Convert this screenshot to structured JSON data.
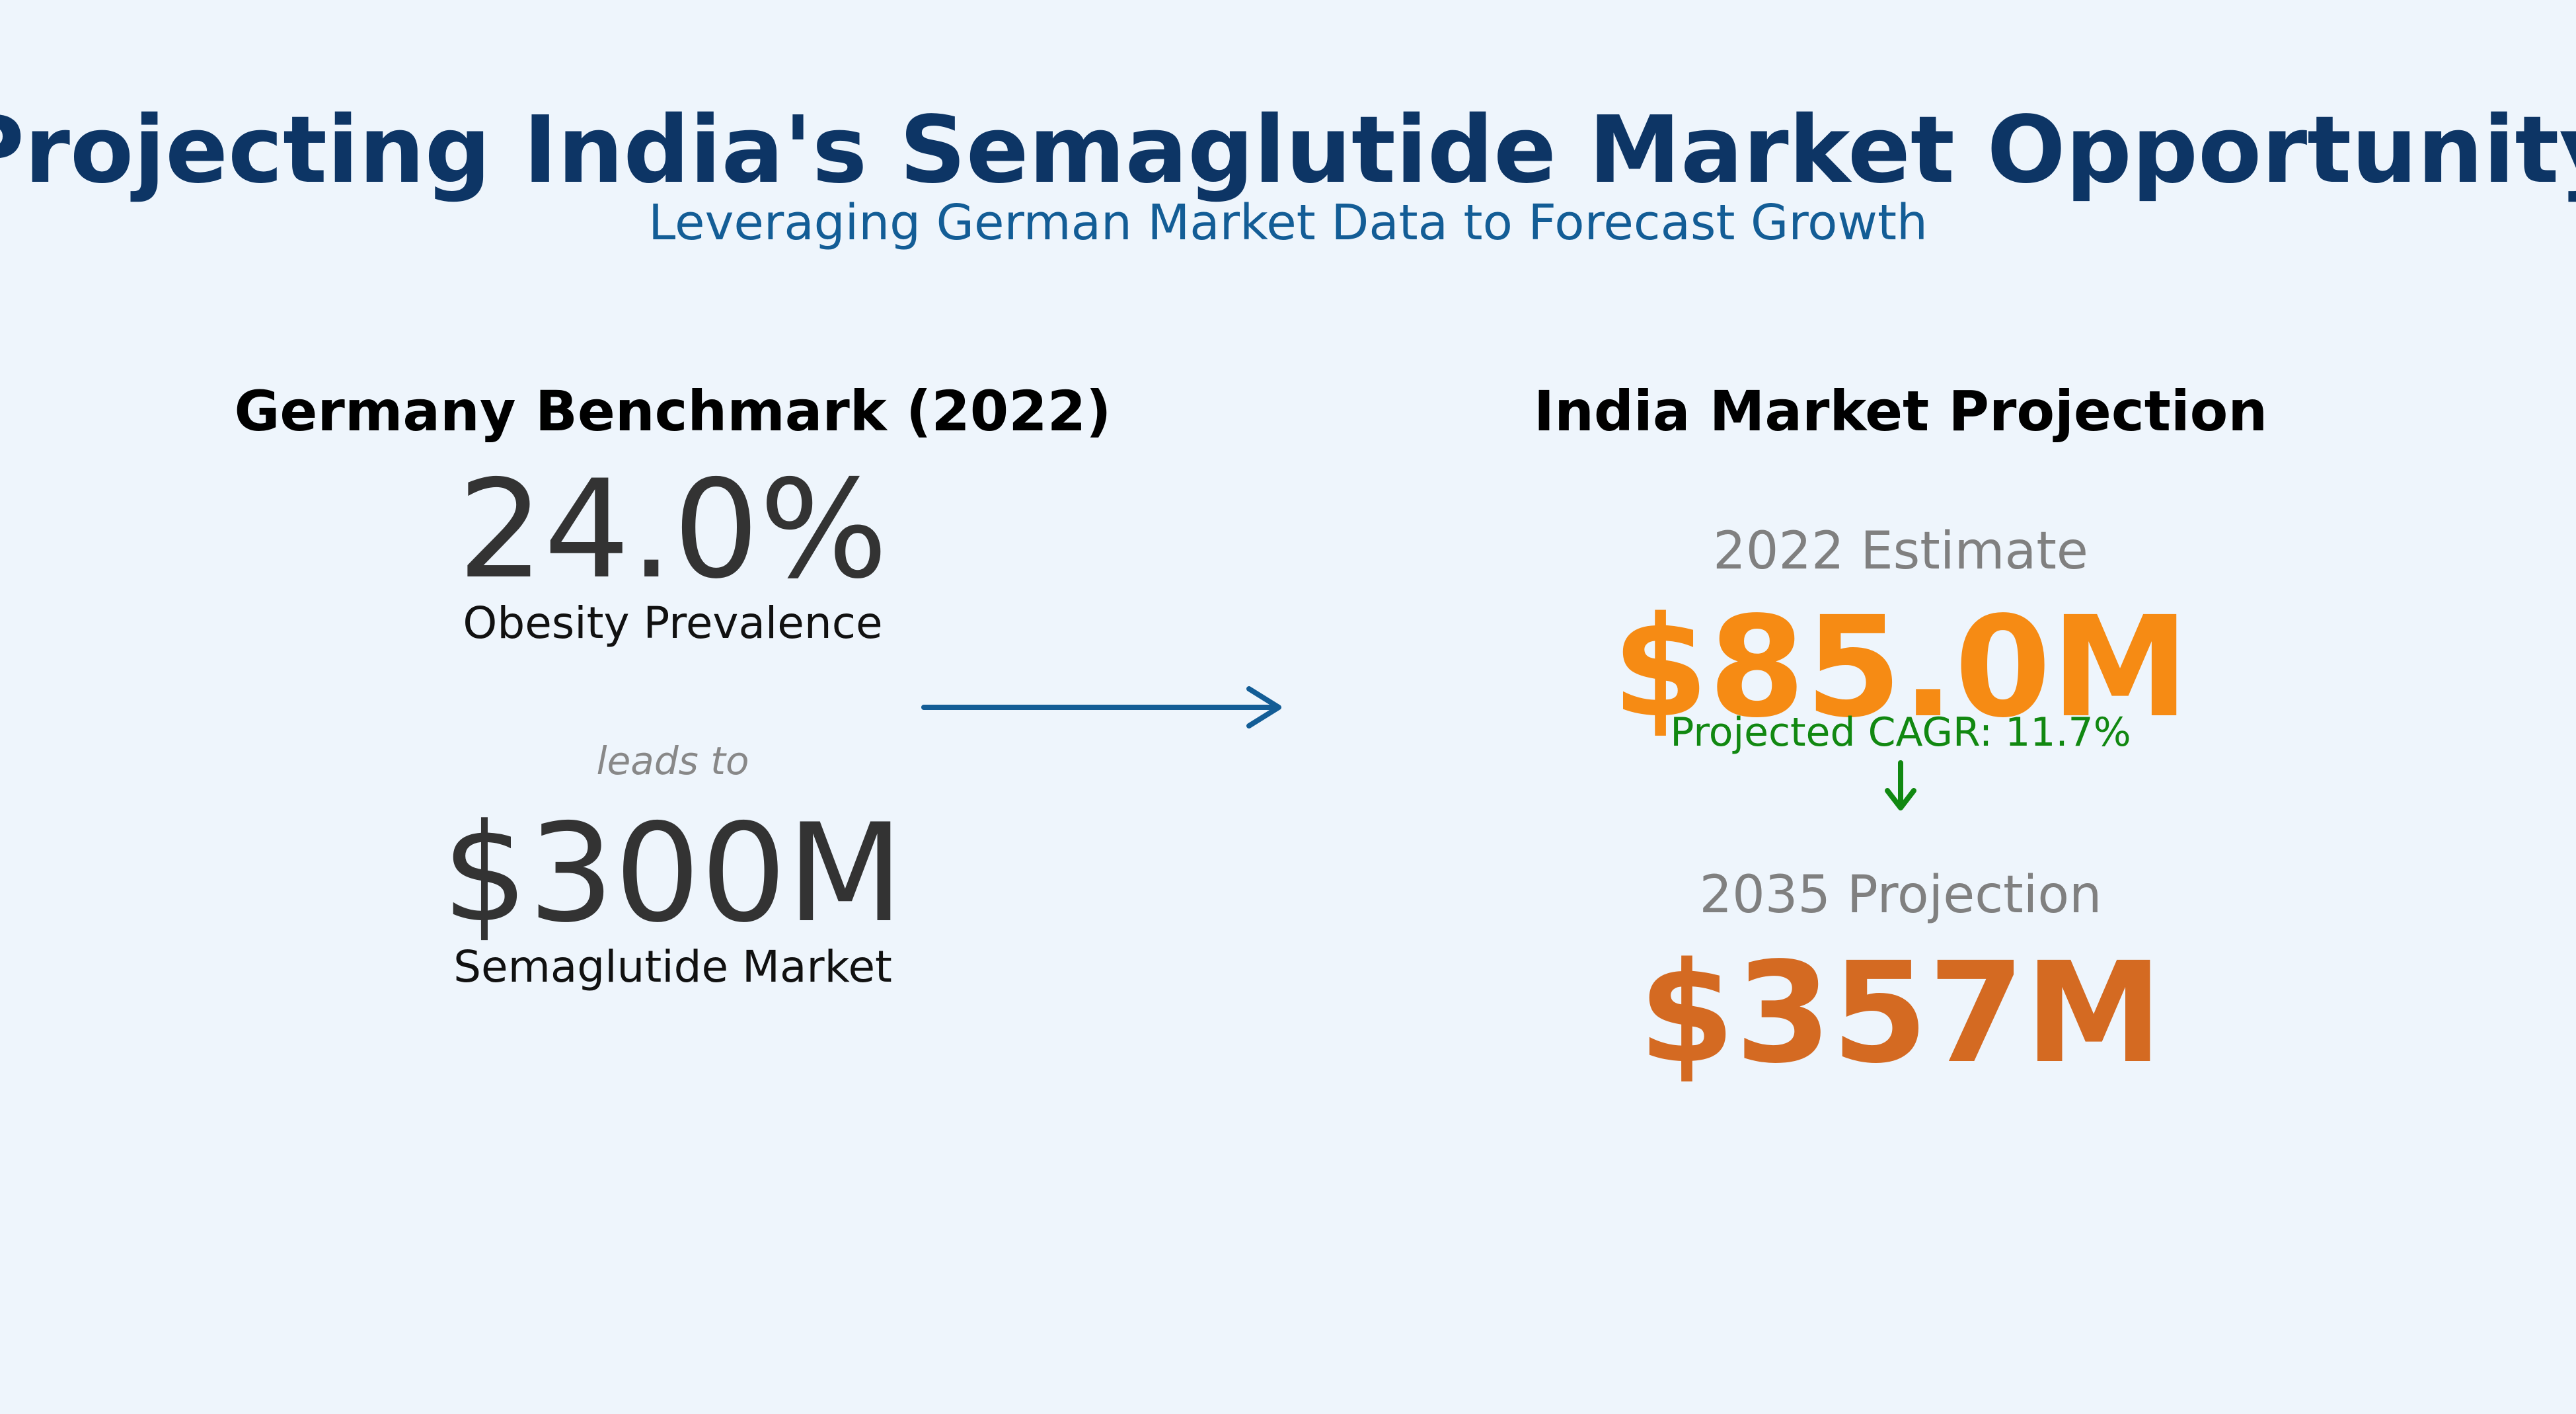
{
  "header": {
    "title": "Projecting India's Semaglutide Market Opportunity",
    "subtitle": "Leveraging German Market Data to Forecast Growth"
  },
  "germany": {
    "heading": "Germany Benchmark (2022)",
    "obesity_value": "24.0%",
    "obesity_label": "Obesity Prevalence",
    "connector": "leads to",
    "market_value": "$300M",
    "market_label": "Semaglutide Market"
  },
  "india": {
    "heading": "India Market Projection",
    "estimate_label": "2022 Estimate",
    "estimate_value": "$85.0M",
    "cagr_label": "Projected CAGR: 11.7%",
    "projection_label": "2035 Projection",
    "projection_value": "$357M"
  },
  "colors": {
    "background": "#eef5fc",
    "title": "#0d3565",
    "subtitle": "#135d96",
    "arrow": "#135d96",
    "estimate": "#f68b14",
    "projection": "#d46a22",
    "cagr": "#118811"
  },
  "icons": {
    "flow_arrow": "right-arrow-icon",
    "growth_arrow": "down-arrow-icon"
  }
}
